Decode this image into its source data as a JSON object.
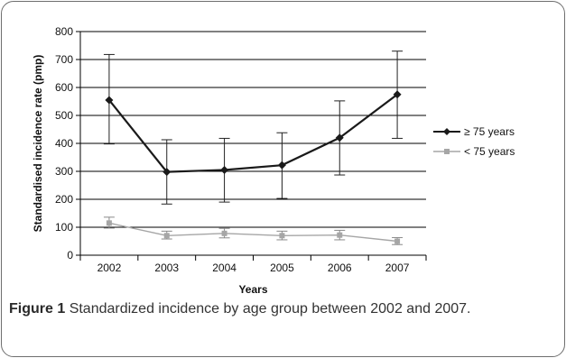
{
  "chart_data": {
    "type": "line",
    "categories": [
      "2002",
      "2003",
      "2004",
      "2005",
      "2006",
      "2007"
    ],
    "xlabel": "Years",
    "ylabel": "Standardised incidence rate (pmp)",
    "ylim": [
      0,
      800
    ],
    "yticks": [
      0,
      100,
      200,
      300,
      400,
      500,
      600,
      700,
      800
    ],
    "grid": true,
    "legend_position": "right",
    "series": [
      {
        "name": "≥ 75 years",
        "color": "#1a1a1a",
        "marker": "diamond",
        "values": [
          555,
          298,
          305,
          322,
          420,
          575
        ],
        "err_low": [
          398,
          183,
          190,
          203,
          287,
          418
        ],
        "err_high": [
          718,
          413,
          418,
          438,
          552,
          730
        ]
      },
      {
        "name": "< 75 years",
        "color": "#a6a6a6",
        "marker": "square",
        "values": [
          115,
          70,
          78,
          70,
          72,
          50
        ],
        "err_low": [
          97,
          58,
          62,
          55,
          55,
          38
        ],
        "err_high": [
          136,
          86,
          96,
          86,
          89,
          63
        ]
      }
    ]
  },
  "caption": {
    "label": "Figure 1",
    "text": "Standardized incidence by age group between 2002 and 2007."
  }
}
